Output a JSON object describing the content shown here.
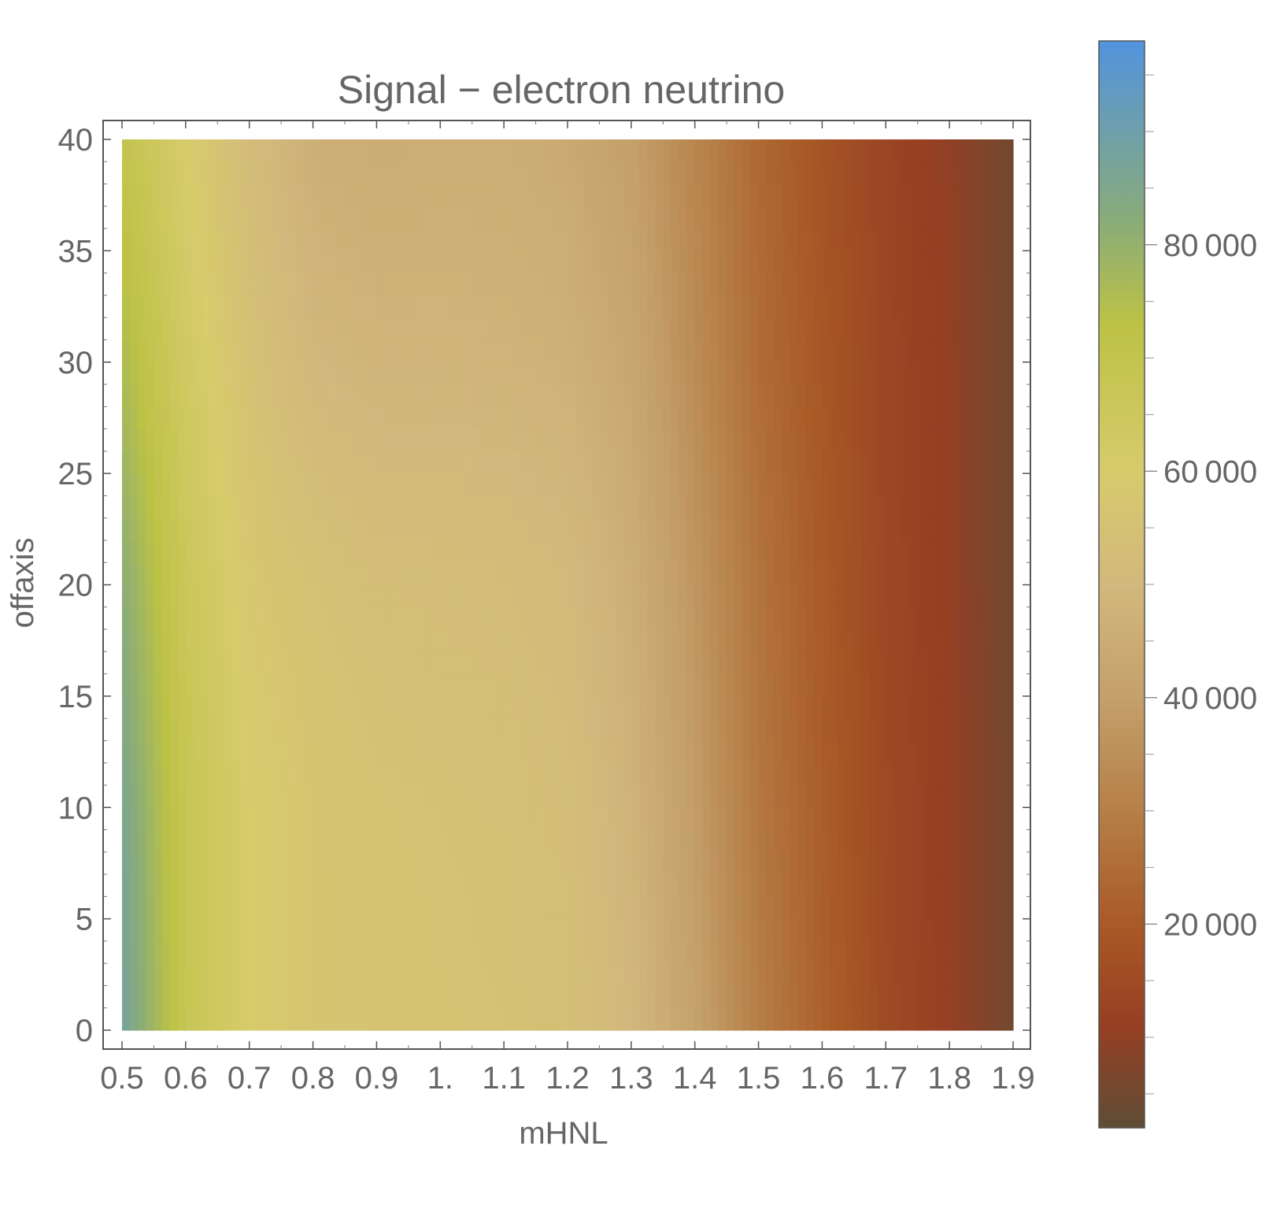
{
  "chart_data": {
    "type": "heatmap",
    "title": "Signal − electron neutrino",
    "xlabel": "mHNL",
    "ylabel": "offaxis",
    "xlim": [
      0.5,
      1.9
    ],
    "ylim": [
      0,
      40
    ],
    "x_ticks": [
      {
        "v": 0.5,
        "label": "0.5"
      },
      {
        "v": 0.6,
        "label": "0.6"
      },
      {
        "v": 0.7,
        "label": "0.7"
      },
      {
        "v": 0.8,
        "label": "0.8"
      },
      {
        "v": 0.9,
        "label": "0.9"
      },
      {
        "v": 1.0,
        "label": "1."
      },
      {
        "v": 1.1,
        "label": "1.1"
      },
      {
        "v": 1.2,
        "label": "1.2"
      },
      {
        "v": 1.3,
        "label": "1.3"
      },
      {
        "v": 1.4,
        "label": "1.4"
      },
      {
        "v": 1.5,
        "label": "1.5"
      },
      {
        "v": 1.6,
        "label": "1.6"
      },
      {
        "v": 1.7,
        "label": "1.7"
      },
      {
        "v": 1.8,
        "label": "1.8"
      },
      {
        "v": 1.9,
        "label": "1.9"
      }
    ],
    "y_ticks": [
      {
        "v": 0,
        "label": "0"
      },
      {
        "v": 5,
        "label": "5"
      },
      {
        "v": 10,
        "label": "10"
      },
      {
        "v": 15,
        "label": "15"
      },
      {
        "v": 20,
        "label": "20"
      },
      {
        "v": 25,
        "label": "25"
      },
      {
        "v": 30,
        "label": "30"
      },
      {
        "v": 35,
        "label": "35"
      },
      {
        "v": 40,
        "label": "40"
      }
    ],
    "x": [
      0.5,
      0.6,
      0.7,
      0.8,
      0.9,
      1.0,
      1.1,
      1.2,
      1.3,
      1.4,
      1.5,
      1.6,
      1.7,
      1.8,
      1.9
    ],
    "y": [
      0,
      10,
      20,
      30,
      40
    ],
    "z": [
      [
        88000,
        68000,
        60000,
        57000,
        56000,
        55500,
        55000,
        54000,
        50000,
        41000,
        30000,
        22000,
        15000,
        11000,
        5000
      ],
      [
        86000,
        68000,
        60000,
        57000,
        55500,
        55000,
        54500,
        53000,
        48000,
        39000,
        28000,
        21000,
        14500,
        11000,
        5000
      ],
      [
        82000,
        66000,
        58000,
        55000,
        53500,
        53000,
        52500,
        51000,
        46000,
        37000,
        27000,
        20000,
        14000,
        10500,
        5000
      ],
      [
        76000,
        63000,
        55000,
        50000,
        48500,
        48500,
        48000,
        47000,
        43000,
        34000,
        25000,
        19000,
        13500,
        10500,
        5000
      ],
      [
        70000,
        60000,
        52000,
        46000,
        45000,
        45500,
        45500,
        44000,
        40000,
        32000,
        24000,
        18000,
        13000,
        10000,
        5000
      ]
    ],
    "colorbar": {
      "range": [
        2000,
        98000
      ],
      "ticks": [
        {
          "v": 20000,
          "label": "20 000"
        },
        {
          "v": 40000,
          "label": "40 000"
        },
        {
          "v": 60000,
          "label": "60 000"
        },
        {
          "v": 80000,
          "label": "80 000"
        }
      ],
      "minor_ticks": [
        5000,
        10000,
        15000,
        25000,
        30000,
        35000,
        45000,
        50000,
        55000,
        65000,
        70000,
        75000,
        85000,
        90000,
        95000
      ],
      "colormap": [
        {
          "v": 2000,
          "color": "#5f4d36"
        },
        {
          "v": 11000,
          "color": "#963f23"
        },
        {
          "v": 20000,
          "color": "#a95a26"
        },
        {
          "v": 30000,
          "color": "#b67f48"
        },
        {
          "v": 40000,
          "color": "#c4a06a"
        },
        {
          "v": 50000,
          "color": "#d2b87c"
        },
        {
          "v": 60000,
          "color": "#d7cb6c"
        },
        {
          "v": 73000,
          "color": "#bcc245"
        },
        {
          "v": 82000,
          "color": "#8aac78"
        },
        {
          "v": 98000,
          "color": "#5293de"
        }
      ]
    }
  }
}
